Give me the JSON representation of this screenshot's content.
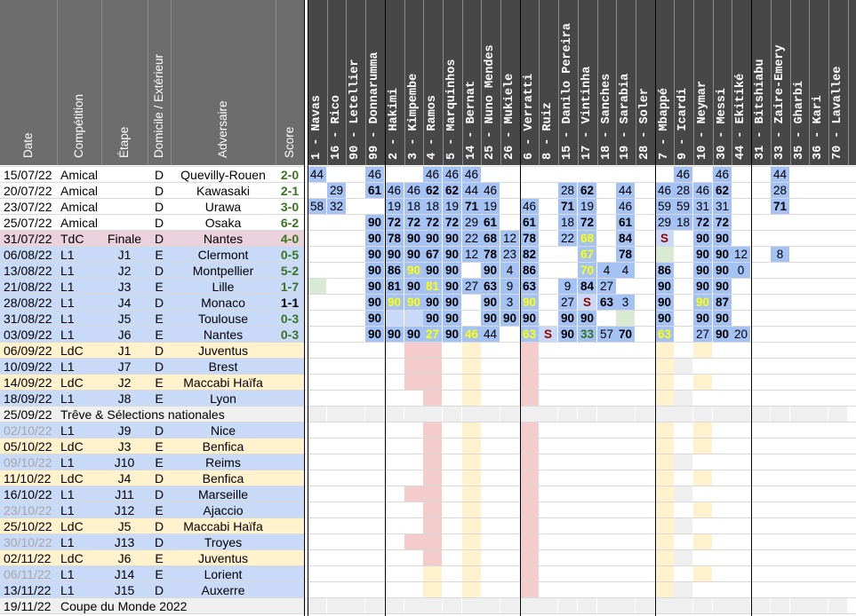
{
  "colors": {
    "header_left": "#6d6d6d",
    "header_right": "#474747",
    "amical": "#ffffff",
    "l1": "#c9daf8",
    "ldc": "#fff2cc",
    "tdc": "#ead1dc",
    "break": "#efefef",
    "played": "#a4c2f4",
    "played_light": "#c9daf8",
    "sub_green": "#d9ead3",
    "yellow_text": "#ffff00",
    "red_text": "#990000",
    "green_text": "#38761d",
    "susp_red": "#f4cccc",
    "susp_yellow": "#fff2cc",
    "blank": "#ffffff"
  },
  "left_headers": [
    "Date",
    "Compétition",
    "Étape",
    "Domicile / Extérieur",
    "Adversaire",
    "Score"
  ],
  "players": [
    "1 - Navas",
    "16 - Rico",
    "90 - Letellier",
    "99 - Donnarumma",
    "2 - Hakimi",
    "3 - Kimpembe",
    "4 - Ramos",
    "5 - Marquinhos",
    "14 - Bernat",
    "25 - Nuno Mendes",
    "26 - Mukiele",
    "6 - Verratti",
    "8 - Ruiz",
    "15 - Danilo Pereira",
    "17 - Vintinha",
    "18 - Sanches",
    "19 - Sarabia",
    "28 - Soler",
    "7 - Mbappé",
    "9 - Icardi",
    "10 - Neymar",
    "30 - Messi",
    "44 - Ekitiké",
    "31 - Bitshiabu",
    "33 - Zaire-Emery",
    "35 - Gharbi",
    "36 - Kari",
    "70 - Lavallee"
  ],
  "matches": [
    {
      "date": "15/07/22",
      "comp": "Amical",
      "stage": "",
      "venue": "D",
      "opponent": "Quevilly-Rouen",
      "score": "2-0",
      "type": "amical",
      "cells": [
        "44",
        "",
        "",
        "46",
        "",
        "",
        "46",
        "46",
        "46",
        "",
        "",
        "",
        "",
        "",
        "",
        "",
        "",
        "",
        "",
        "46",
        "",
        "46",
        "",
        "",
        "44",
        "",
        "",
        ""
      ]
    },
    {
      "date": "20/07/22",
      "comp": "Amical",
      "stage": "",
      "venue": "D",
      "opponent": "Kawasaki",
      "score": "2-1",
      "type": "amical",
      "cells": [
        "",
        "29",
        "",
        "61",
        "46",
        "46",
        "62",
        "62",
        "44",
        "46",
        "",
        "",
        "",
        "28",
        "62",
        "",
        "44",
        "",
        "46",
        "28",
        "46",
        "62",
        "",
        "",
        "28",
        "",
        "",
        ""
      ]
    },
    {
      "date": "23/07/22",
      "comp": "Amical",
      "stage": "",
      "venue": "D",
      "opponent": "Urawa",
      "score": "3-0",
      "type": "amical",
      "cells": [
        "58",
        "32",
        "",
        "",
        "19",
        "18",
        "18",
        "19",
        "71",
        "19",
        "",
        "46",
        "",
        "71",
        "19",
        "",
        "46",
        "",
        "59",
        "59",
        "31",
        "31",
        "",
        "",
        "71",
        "",
        "",
        ""
      ]
    },
    {
      "date": "25/07/22",
      "comp": "Amical",
      "stage": "",
      "venue": "D",
      "opponent": "Osaka",
      "score": "6-2",
      "type": "amical",
      "cells": [
        "",
        "",
        "",
        "90",
        "72",
        "72",
        "72",
        "72",
        "29",
        "61",
        "",
        "61",
        "",
        "18",
        "72",
        "",
        "61",
        "",
        "29",
        "18",
        "72",
        "72",
        "",
        "",
        "",
        "",
        "",
        ""
      ]
    },
    {
      "date": "31/07/22",
      "comp": "TdC",
      "stage": "Finale",
      "venue": "D",
      "opponent": "Nantes",
      "score": "4-0",
      "type": "tdc",
      "cells": [
        "",
        "",
        "",
        "90",
        "78",
        "90",
        "90",
        "90",
        "22",
        "68",
        "12",
        "78",
        "",
        "22",
        "68",
        "",
        "84",
        "",
        "S",
        "",
        "90",
        "90",
        "",
        "",
        "",
        "",
        "",
        ""
      ]
    },
    {
      "date": "06/08/22",
      "comp": "L1",
      "stage": "J1",
      "venue": "E",
      "opponent": "Clermont",
      "score": "0-5",
      "type": "l1",
      "cells": [
        "",
        "",
        "",
        "90",
        "90",
        "90",
        "67",
        "90",
        "12",
        "78",
        "23",
        "82",
        "",
        "",
        "67",
        "",
        "78",
        "",
        "",
        "",
        "90",
        "90",
        "12",
        "",
        "8",
        "",
        "",
        ""
      ]
    },
    {
      "date": "13/08/22",
      "comp": "L1",
      "stage": "J2",
      "venue": "D",
      "opponent": "Montpellier",
      "score": "5-2",
      "type": "l1",
      "cells": [
        "",
        "",
        "",
        "90",
        "86",
        "90",
        "90",
        "90",
        "",
        "90",
        "4",
        "86",
        "",
        "",
        "70",
        "4",
        "4",
        "",
        "86",
        "",
        "90",
        "90",
        "0",
        "",
        "",
        "",
        "",
        ""
      ]
    },
    {
      "date": "21/08/22",
      "comp": "L1",
      "stage": "J3",
      "venue": "E",
      "opponent": "Lille",
      "score": "1-7",
      "type": "l1",
      "cells": [
        "",
        "",
        "",
        "90",
        "81",
        "90",
        "81",
        "90",
        "27",
        "63",
        "9",
        "63",
        "",
        "9",
        "84",
        "27",
        "",
        "",
        "90",
        "",
        "90",
        "90",
        "",
        "",
        "",
        "",
        "",
        ""
      ]
    },
    {
      "date": "28/08/22",
      "comp": "L1",
      "stage": "J4",
      "venue": "D",
      "opponent": "Monaco",
      "score": "1-1",
      "type": "l1",
      "cells": [
        "",
        "",
        "",
        "90",
        "90",
        "90",
        "90",
        "90",
        "",
        "90",
        "3",
        "90",
        "",
        "27",
        "S",
        "63",
        "3",
        "",
        "90",
        "",
        "90",
        "87",
        "",
        "",
        "",
        "",
        "",
        ""
      ]
    },
    {
      "date": "31/08/22",
      "comp": "L1",
      "stage": "J5",
      "venue": "E",
      "opponent": "Toulouse",
      "score": "0-3",
      "type": "l1",
      "cells": [
        "",
        "",
        "",
        "90",
        "",
        "",
        "90",
        "90",
        "",
        "90",
        "90",
        "90",
        "",
        "90",
        "90",
        "",
        "",
        "",
        "90",
        "",
        "90",
        "90",
        "",
        "",
        "",
        "",
        "",
        ""
      ]
    },
    {
      "date": "03/09/22",
      "comp": "L1",
      "stage": "J6",
      "venue": "E",
      "opponent": "Nantes",
      "score": "0-3",
      "type": "l1",
      "cells": [
        "",
        "",
        "",
        "90",
        "90",
        "90",
        "27",
        "90",
        "46",
        "44",
        "",
        "63",
        "S",
        "90",
        "33",
        "57",
        "70",
        "",
        "63",
        "",
        "27",
        "90",
        "20",
        "",
        "",
        "",
        "",
        ""
      ]
    },
    {
      "date": "06/09/22",
      "comp": "LdC",
      "stage": "J1",
      "venue": "D",
      "opponent": "Juventus",
      "score": "",
      "type": "ldc",
      "cells": []
    },
    {
      "date": "10/09/22",
      "comp": "L1",
      "stage": "J7",
      "venue": "D",
      "opponent": "Brest",
      "score": "",
      "type": "l1",
      "cells": []
    },
    {
      "date": "14/09/22",
      "comp": "LdC",
      "stage": "J2",
      "venue": "E",
      "opponent": "Maccabi Haïfa",
      "score": "",
      "type": "ldc",
      "cells": []
    },
    {
      "date": "18/09/22",
      "comp": "L1",
      "stage": "J8",
      "venue": "E",
      "opponent": "Lyon",
      "score": "",
      "type": "l1",
      "cells": []
    },
    {
      "date": "25/09/22",
      "comp": "Trêve & Sélections nationales",
      "stage": "",
      "venue": "",
      "opponent": "",
      "score": "",
      "type": "break",
      "cells": []
    },
    {
      "date": "02/10/22",
      "comp": "L1",
      "stage": "J9",
      "venue": "D",
      "opponent": "Nice",
      "score": "",
      "type": "l1",
      "greydate": true,
      "cells": []
    },
    {
      "date": "05/10/22",
      "comp": "LdC",
      "stage": "J3",
      "venue": "E",
      "opponent": "Benfica",
      "score": "",
      "type": "ldc",
      "cells": []
    },
    {
      "date": "09/10/22",
      "comp": "L1",
      "stage": "J10",
      "venue": "E",
      "opponent": "Reims",
      "score": "",
      "type": "l1",
      "greydate": true,
      "cells": []
    },
    {
      "date": "11/10/22",
      "comp": "LdC",
      "stage": "J4",
      "venue": "D",
      "opponent": "Benfica",
      "score": "",
      "type": "ldc",
      "cells": []
    },
    {
      "date": "16/10/22",
      "comp": "L1",
      "stage": "J11",
      "venue": "D",
      "opponent": "Marseille",
      "score": "",
      "type": "l1",
      "cells": []
    },
    {
      "date": "23/10/22",
      "comp": "L1",
      "stage": "J12",
      "venue": "E",
      "opponent": "Ajaccio",
      "score": "",
      "type": "l1",
      "greydate": true,
      "cells": []
    },
    {
      "date": "25/10/22",
      "comp": "LdC",
      "stage": "J5",
      "venue": "D",
      "opponent": "Maccabi Haïfa",
      "score": "",
      "type": "ldc",
      "cells": []
    },
    {
      "date": "30/10/22",
      "comp": "L1",
      "stage": "J13",
      "venue": "D",
      "opponent": "Troyes",
      "score": "",
      "type": "l1",
      "greydate": true,
      "cells": []
    },
    {
      "date": "02/11/22",
      "comp": "LdC",
      "stage": "J6",
      "venue": "E",
      "opponent": "Juventus",
      "score": "",
      "type": "ldc",
      "cells": []
    },
    {
      "date": "06/11/22",
      "comp": "L1",
      "stage": "J14",
      "venue": "E",
      "opponent": "Lorient",
      "score": "",
      "type": "l1",
      "greydate": true,
      "cells": []
    },
    {
      "date": "13/11/22",
      "comp": "L1",
      "stage": "J15",
      "venue": "D",
      "opponent": "Auxerre",
      "score": "",
      "type": "l1",
      "cells": []
    },
    {
      "date": "19/11/22",
      "comp": "Coupe du Monde 2022",
      "stage": "",
      "venue": "",
      "opponent": "",
      "score": "",
      "type": "break",
      "cells": []
    }
  ]
}
